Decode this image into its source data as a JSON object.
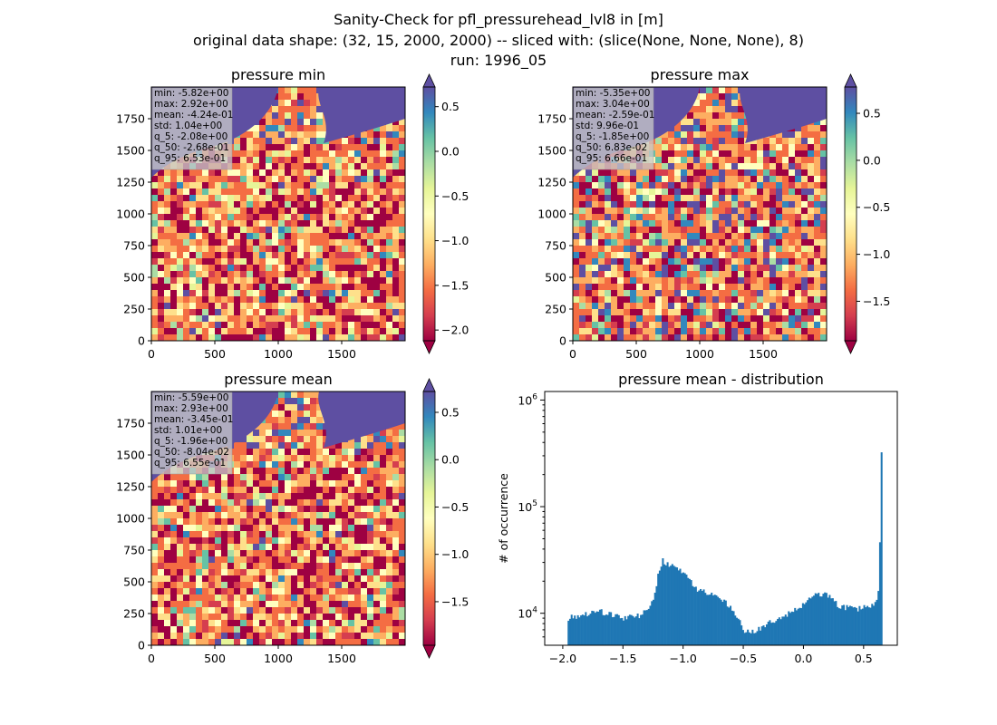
{
  "figure": {
    "title_line1": "Sanity-Check for pfl_pressurehead_lvl8 in [m]",
    "title_line2": "original data shape: (32, 15, 2000, 2000) -- sliced with: (slice(None, None, None), 8)",
    "title_line3": "run: 1996_05"
  },
  "colors": {
    "spectral": [
      "#9e0142",
      "#d53e4f",
      "#f46d43",
      "#fdae61",
      "#fee08b",
      "#ffffbf",
      "#e6f598",
      "#abdda4",
      "#66c2a5",
      "#3288bd",
      "#5e4fa2"
    ],
    "hist_bar": "#1f77b4",
    "stats_box": "#c8c8c8"
  },
  "chart_data": [
    {
      "type": "heatmap",
      "title": "pressure min",
      "xlim": [
        0,
        2000
      ],
      "ylim": [
        0,
        2000
      ],
      "xticks": [
        0,
        500,
        1000,
        1500
      ],
      "yticks": [
        0,
        250,
        500,
        750,
        1000,
        1250,
        1500,
        1750
      ],
      "colormap": "Spectral",
      "colorbar": {
        "range": [
          -2.12,
          0.72
        ],
        "ticks": [
          0.5,
          0.0,
          -0.5,
          -1.0,
          -1.5,
          -2.0
        ],
        "extend": "both"
      },
      "stats": [
        "min: -5.82e+00",
        "max: 2.92e+00",
        "mean: -4.24e-01",
        "std: 1.04e+00",
        "q_5: -2.08e+00",
        "q_50: -2.68e-01",
        "q_95: 6.53e-01"
      ]
    },
    {
      "type": "heatmap",
      "title": "pressure max",
      "xlim": [
        0,
        2000
      ],
      "ylim": [
        0,
        2000
      ],
      "xticks": [
        0,
        500,
        1000,
        1500
      ],
      "yticks": [
        0,
        250,
        500,
        750,
        1000,
        1250,
        1500,
        1750
      ],
      "colormap": "Spectral",
      "colorbar": {
        "range": [
          -1.92,
          0.78
        ],
        "ticks": [
          0.5,
          0.0,
          -0.5,
          -1.0,
          -1.5
        ],
        "extend": "both"
      },
      "stats": [
        "min: -5.35e+00",
        "max: 3.04e+00",
        "mean: -2.59e-01",
        "std: 9.96e-01",
        "q_5: -1.85e+00",
        "q_50: 6.83e-02",
        "q_95: 6.66e-01"
      ]
    },
    {
      "type": "heatmap",
      "title": "pressure mean",
      "xlim": [
        0,
        2000
      ],
      "ylim": [
        0,
        2000
      ],
      "xticks": [
        0,
        500,
        1000,
        1500
      ],
      "yticks": [
        0,
        250,
        500,
        750,
        1000,
        1250,
        1500,
        1750
      ],
      "colormap": "Spectral",
      "colorbar": {
        "range": [
          -1.96,
          0.72
        ],
        "ticks": [
          0.5,
          0.0,
          -0.5,
          -1.0,
          -1.5
        ],
        "extend": "both"
      },
      "stats": [
        "min: -5.59e+00",
        "max: 2.93e+00",
        "mean: -3.45e-01",
        "std: 1.01e+00",
        "q_5: -1.96e+00",
        "q_50: -8.04e-02",
        "q_95: 6.55e-01"
      ]
    },
    {
      "type": "bar",
      "title": "pressure mean - distribution",
      "xlabel": "",
      "ylabel": "# of occurrence",
      "xlim": [
        -2.15,
        0.78
      ],
      "ylim_log10": [
        3.7,
        6.08
      ],
      "yscale": "log",
      "xticks": [
        -2.0,
        -1.5,
        -1.0,
        -0.5,
        0.0,
        0.5
      ],
      "xtick_labels": [
        "−2.0",
        "−1.5",
        "−1.0",
        "−0.5",
        "0.0",
        "0.5"
      ],
      "ytick_labels": [
        "10^4",
        "10^5",
        "10^6"
      ],
      "hist_range": [
        -1.96,
        0.655
      ],
      "bins": 200,
      "density_profile": [
        [
          -1.96,
          9000
        ],
        [
          -1.7,
          10500
        ],
        [
          -1.5,
          9000
        ],
        [
          -1.35,
          9500
        ],
        [
          -1.25,
          13000
        ],
        [
          -1.2,
          25000
        ],
        [
          -1.17,
          31000
        ],
        [
          -1.12,
          28000
        ],
        [
          -1.05,
          26500
        ],
        [
          -0.98,
          24000
        ],
        [
          -0.9,
          17000
        ],
        [
          -0.8,
          15500
        ],
        [
          -0.7,
          14500
        ],
        [
          -0.6,
          11000
        ],
        [
          -0.52,
          8000
        ],
        [
          -0.48,
          6600
        ],
        [
          -0.4,
          6800
        ],
        [
          -0.3,
          8000
        ],
        [
          -0.15,
          9500
        ],
        [
          0.0,
          12000
        ],
        [
          0.1,
          15000
        ],
        [
          0.2,
          15000
        ],
        [
          0.3,
          11500
        ],
        [
          0.45,
          11000
        ],
        [
          0.55,
          11500
        ],
        [
          0.6,
          12500
        ],
        [
          0.625,
          16000
        ],
        [
          0.635,
          40000
        ],
        [
          0.643,
          820000
        ],
        [
          0.65,
          250000
        ],
        [
          0.655,
          250000
        ]
      ]
    }
  ]
}
